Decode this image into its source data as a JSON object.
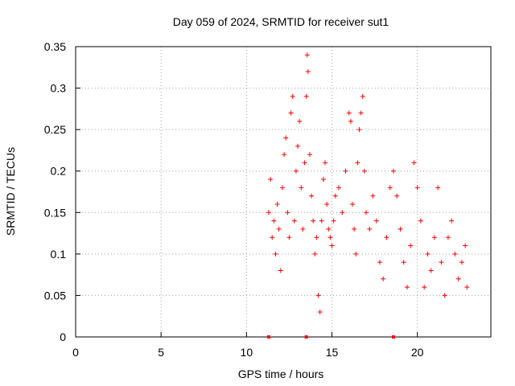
{
  "chart_data": {
    "type": "scatter",
    "title": "Day 059 of 2024, SRMTID for receiver sut1",
    "xlabel": "GPS time / hours",
    "ylabel": "SRMTID / TECUs",
    "xlim": [
      0,
      24.3
    ],
    "ylim": [
      0,
      0.35
    ],
    "xticks": [
      "0",
      "5",
      "10",
      "15",
      "20"
    ],
    "yticks": [
      "0",
      "0.05",
      "0.1",
      "0.15",
      "0.2",
      "0.25",
      "0.3",
      "0.35"
    ],
    "grid": true,
    "marker": "plus",
    "color": "#ff0000",
    "outlier_markers_at_zero": [
      11.3,
      13.5,
      18.6
    ],
    "points": [
      [
        11.3,
        0.15
      ],
      [
        11.4,
        0.19
      ],
      [
        11.5,
        0.12
      ],
      [
        11.6,
        0.14
      ],
      [
        11.7,
        0.1
      ],
      [
        11.8,
        0.16
      ],
      [
        11.9,
        0.13
      ],
      [
        12.0,
        0.08
      ],
      [
        12.1,
        0.18
      ],
      [
        12.2,
        0.22
      ],
      [
        12.3,
        0.24
      ],
      [
        12.4,
        0.15
      ],
      [
        12.5,
        0.12
      ],
      [
        12.6,
        0.27
      ],
      [
        12.7,
        0.29
      ],
      [
        12.8,
        0.14
      ],
      [
        12.9,
        0.2
      ],
      [
        13.0,
        0.23
      ],
      [
        13.1,
        0.26
      ],
      [
        13.2,
        0.18
      ],
      [
        13.3,
        0.13
      ],
      [
        13.4,
        0.21
      ],
      [
        13.5,
        0.29
      ],
      [
        13.55,
        0.34
      ],
      [
        13.6,
        0.32
      ],
      [
        13.7,
        0.22
      ],
      [
        13.8,
        0.17
      ],
      [
        13.9,
        0.14
      ],
      [
        14.0,
        0.1
      ],
      [
        14.1,
        0.12
      ],
      [
        14.2,
        0.05
      ],
      [
        14.3,
        0.03
      ],
      [
        14.4,
        0.14
      ],
      [
        14.5,
        0.19
      ],
      [
        14.6,
        0.21
      ],
      [
        14.7,
        0.16
      ],
      [
        14.8,
        0.13
      ],
      [
        14.9,
        0.12
      ],
      [
        15.0,
        0.11
      ],
      [
        15.1,
        0.14
      ],
      [
        15.2,
        0.17
      ],
      [
        15.4,
        0.18
      ],
      [
        15.6,
        0.15
      ],
      [
        15.8,
        0.2
      ],
      [
        16.0,
        0.27
      ],
      [
        16.1,
        0.26
      ],
      [
        16.2,
        0.16
      ],
      [
        16.3,
        0.13
      ],
      [
        16.4,
        0.1
      ],
      [
        16.5,
        0.21
      ],
      [
        16.6,
        0.25
      ],
      [
        16.7,
        0.27
      ],
      [
        16.8,
        0.29
      ],
      [
        16.9,
        0.2
      ],
      [
        17.0,
        0.15
      ],
      [
        17.2,
        0.13
      ],
      [
        17.4,
        0.17
      ],
      [
        17.6,
        0.14
      ],
      [
        17.8,
        0.09
      ],
      [
        18.0,
        0.07
      ],
      [
        18.2,
        0.12
      ],
      [
        18.4,
        0.18
      ],
      [
        18.6,
        0.2
      ],
      [
        18.8,
        0.17
      ],
      [
        19.0,
        0.13
      ],
      [
        19.2,
        0.09
      ],
      [
        19.4,
        0.06
      ],
      [
        19.6,
        0.11
      ],
      [
        19.8,
        0.21
      ],
      [
        20.0,
        0.18
      ],
      [
        20.2,
        0.14
      ],
      [
        20.4,
        0.06
      ],
      [
        20.6,
        0.1
      ],
      [
        20.8,
        0.08
      ],
      [
        21.0,
        0.12
      ],
      [
        21.2,
        0.18
      ],
      [
        21.4,
        0.09
      ],
      [
        21.6,
        0.05
      ],
      [
        21.8,
        0.12
      ],
      [
        22.0,
        0.14
      ],
      [
        22.2,
        0.1
      ],
      [
        22.4,
        0.07
      ],
      [
        22.6,
        0.09
      ],
      [
        22.8,
        0.11
      ],
      [
        22.9,
        0.06
      ]
    ]
  }
}
